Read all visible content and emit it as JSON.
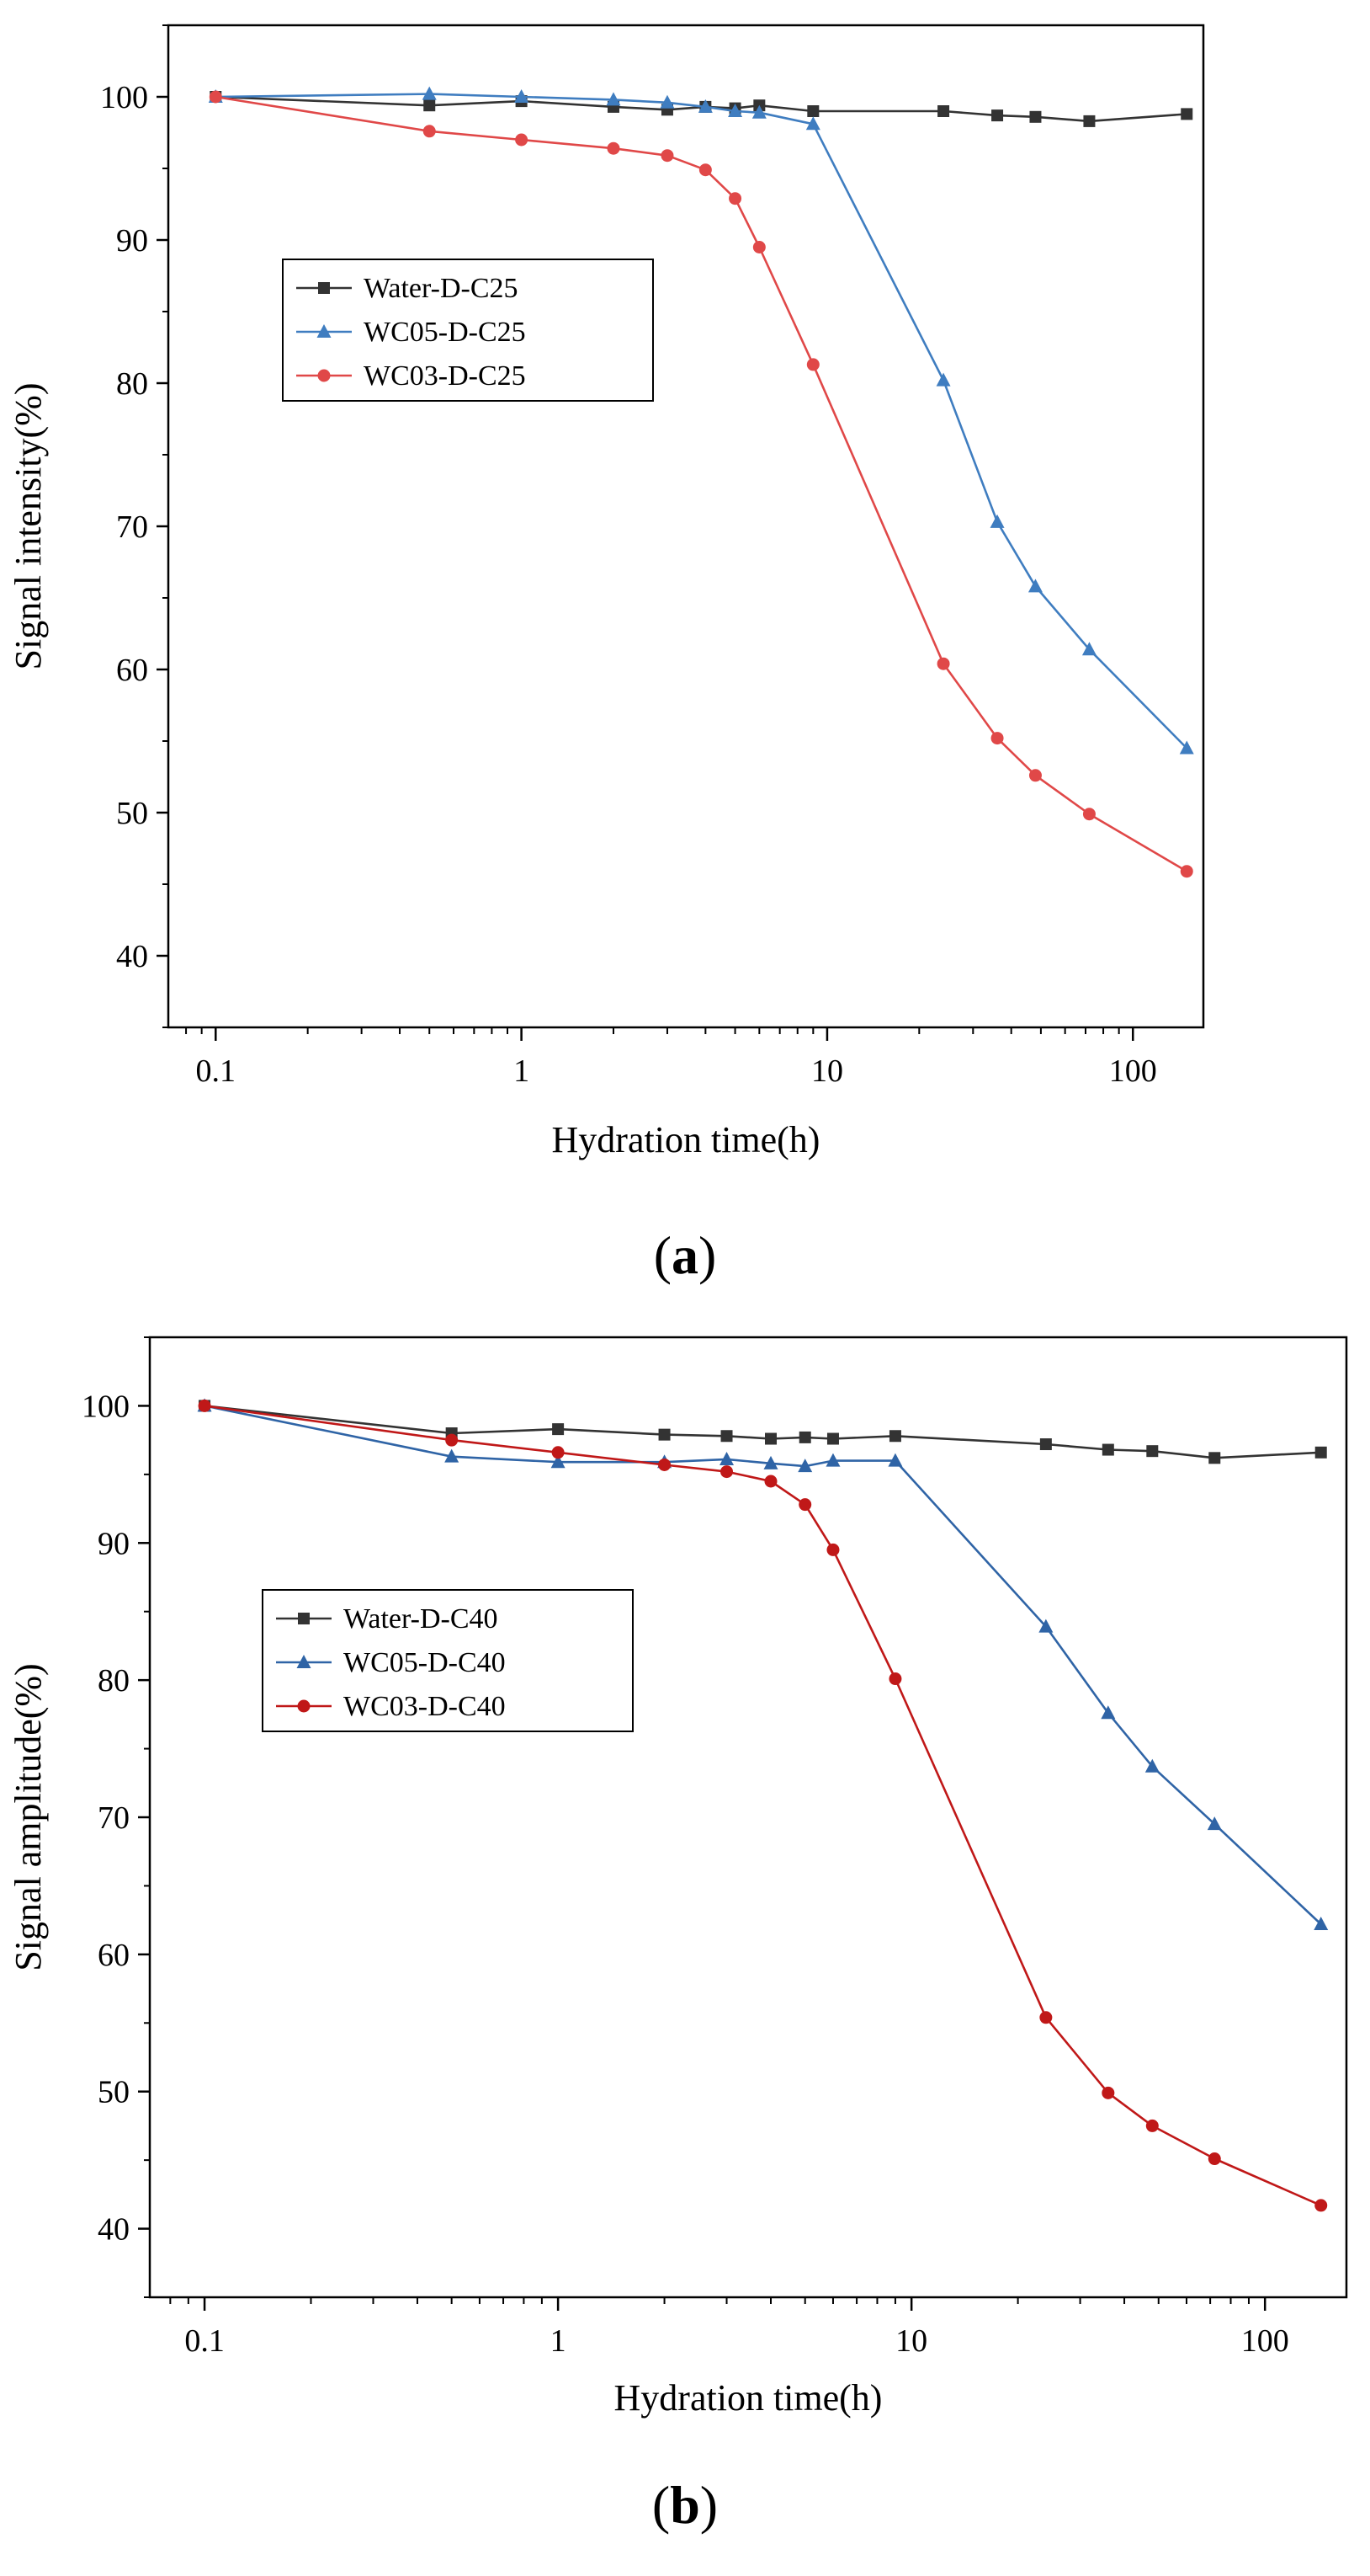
{
  "chart_data": [
    {
      "type": "line",
      "panel_label": "a",
      "xscale": "log",
      "xlabel": "Hydration time(h)",
      "ylabel": "Signal intensity(%)",
      "xlim": [
        0.07,
        170
      ],
      "ylim": [
        35,
        105
      ],
      "xticks": [
        0.1,
        1,
        10,
        100
      ],
      "xtick_labels": [
        "0.1",
        "1",
        "10",
        "100"
      ],
      "yticks": [
        40,
        50,
        60,
        70,
        80,
        90,
        100
      ],
      "ytick_labels": [
        "40",
        "50",
        "60",
        "70",
        "80",
        "90",
        "100"
      ],
      "legend_position": "upper-left",
      "series": [
        {
          "name": "Water-D-C25",
          "color": "#333333",
          "marker": "square",
          "x": [
            0.1,
            0.5,
            1,
            2,
            3,
            4,
            5,
            6,
            9,
            24,
            36,
            48,
            72,
            150
          ],
          "y": [
            100,
            99.4,
            99.7,
            99.3,
            99.1,
            99.3,
            99.2,
            99.4,
            99.0,
            99.0,
            98.7,
            98.6,
            98.3,
            98.8
          ]
        },
        {
          "name": "WC05-D-C25",
          "color": "#3f7dc0",
          "marker": "triangle",
          "x": [
            0.1,
            0.5,
            1,
            2,
            3,
            4,
            5,
            6,
            9,
            24,
            36,
            48,
            72,
            150
          ],
          "y": [
            100,
            100.2,
            100.0,
            99.8,
            99.6,
            99.3,
            99.0,
            98.9,
            98.1,
            80.2,
            70.3,
            65.8,
            61.4,
            54.5
          ]
        },
        {
          "name": "WC03-D-C25",
          "color": "#e04848",
          "marker": "circle",
          "x": [
            0.1,
            0.5,
            1,
            2,
            3,
            4,
            5,
            6,
            9,
            24,
            36,
            48,
            72,
            150
          ],
          "y": [
            100,
            97.6,
            97.0,
            96.4,
            95.9,
            94.9,
            92.9,
            89.5,
            81.3,
            60.4,
            55.2,
            52.6,
            49.9,
            45.9
          ]
        }
      ]
    },
    {
      "type": "line",
      "panel_label": "b",
      "xscale": "log",
      "xlabel": "Hydration time(h)",
      "ylabel": "Signal amplitude(%)",
      "xlim": [
        0.07,
        170
      ],
      "ylim": [
        35,
        105
      ],
      "xticks": [
        0.1,
        1,
        10,
        100
      ],
      "xtick_labels": [
        "0.1",
        "1",
        "10",
        "100"
      ],
      "yticks": [
        40,
        50,
        60,
        70,
        80,
        90,
        100
      ],
      "ytick_labels": [
        "40",
        "50",
        "60",
        "70",
        "80",
        "90",
        "100"
      ],
      "legend_position": "upper-left",
      "series": [
        {
          "name": "Water-D-C40",
          "color": "#333333",
          "marker": "square",
          "x": [
            0.1,
            0.5,
            1,
            2,
            3,
            4,
            5,
            6,
            9,
            24,
            36,
            48,
            72,
            144
          ],
          "y": [
            100,
            98.0,
            98.3,
            97.9,
            97.8,
            97.6,
            97.7,
            97.6,
            97.8,
            97.2,
            96.8,
            96.7,
            96.2,
            96.6
          ]
        },
        {
          "name": "WC05-D-C40",
          "color": "#2f64a6",
          "marker": "triangle",
          "x": [
            0.1,
            0.5,
            1,
            2,
            3,
            4,
            5,
            6,
            9,
            24,
            36,
            48,
            72,
            144
          ],
          "y": [
            100,
            96.3,
            95.9,
            95.9,
            96.1,
            95.8,
            95.6,
            96.0,
            96.0,
            83.9,
            77.6,
            73.7,
            69.5,
            62.2
          ]
        },
        {
          "name": "WC03-D-C40",
          "color": "#c01818",
          "marker": "circle",
          "x": [
            0.1,
            0.5,
            1,
            2,
            3,
            4,
            5,
            6,
            9,
            24,
            36,
            48,
            72,
            144
          ],
          "y": [
            100,
            97.5,
            96.6,
            95.7,
            95.2,
            94.5,
            92.8,
            89.5,
            80.1,
            55.4,
            49.9,
            47.5,
            45.1,
            41.7
          ]
        }
      ]
    }
  ]
}
